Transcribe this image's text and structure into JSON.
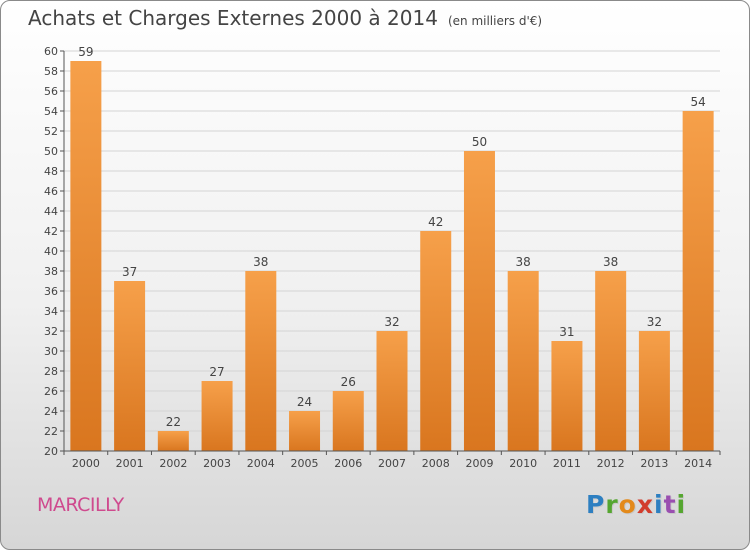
{
  "title": "Achats et Charges Externes 2000 à 2014",
  "unit": "(en milliers d'€)",
  "city": "MARCILLY",
  "logo": {
    "p1": "P",
    "p2": "r",
    "p3": "o",
    "p4": "x",
    "p5": "i",
    "p6": "t",
    "p7": "i"
  },
  "colors": {
    "bar_light": "#f6a04a",
    "bar_dark": "#d9761f",
    "city": "#cf4a8e"
  },
  "chart_data": {
    "type": "bar",
    "categories": [
      "2000",
      "2001",
      "2002",
      "2003",
      "2004",
      "2005",
      "2006",
      "2007",
      "2008",
      "2009",
      "2010",
      "2011",
      "2012",
      "2013",
      "2014"
    ],
    "values": [
      59,
      37,
      22,
      27,
      38,
      24,
      26,
      32,
      42,
      50,
      38,
      31,
      38,
      32,
      54
    ],
    "ylim": [
      20,
      60
    ],
    "yticks": [
      20,
      22,
      24,
      26,
      28,
      30,
      32,
      34,
      36,
      38,
      40,
      42,
      44,
      46,
      48,
      50,
      52,
      54,
      56,
      58,
      60
    ],
    "grid": true
  }
}
